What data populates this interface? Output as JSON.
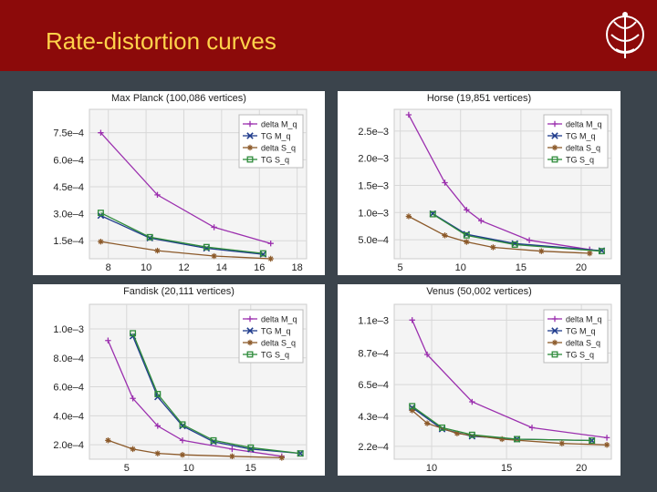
{
  "slide": {
    "title": "Rate-distortion curves"
  },
  "chart_data": [
    {
      "type": "line",
      "title": "Max Planck (100,086 vertices)",
      "xlim": [
        7,
        18.5
      ],
      "ylim": [
        5e-05,
        0.00088
      ],
      "xticks": [
        8,
        10,
        12,
        14,
        16,
        18
      ],
      "yticks": [
        0.00015,
        0.0003,
        0.00045,
        0.0006,
        0.00075
      ],
      "ytick_labels": [
        "1.5e–4",
        "3.0e–4",
        "4.5e–4",
        "6.0e–4",
        "7.5e–4"
      ],
      "legend": [
        "delta M_q",
        "TG M_q",
        "delta S_q",
        "TG S_q"
      ],
      "series": [
        {
          "name": "delta M_q",
          "x": [
            7.6,
            10.6,
            13.6,
            16.6
          ],
          "values": [
            0.00075,
            0.000405,
            0.000225,
            0.000135
          ]
        },
        {
          "name": "TG M_q",
          "x": [
            7.6,
            10.2,
            13.2,
            16.2
          ],
          "values": [
            0.00029,
            0.000165,
            0.000108,
            7.5e-05
          ]
        },
        {
          "name": "delta S_q",
          "x": [
            7.6,
            10.6,
            13.6,
            16.6
          ],
          "values": [
            0.000145,
            9.5e-05,
            6.5e-05,
            5e-05
          ]
        },
        {
          "name": "TG S_q",
          "x": [
            7.6,
            10.2,
            13.2,
            16.2
          ],
          "values": [
            0.000305,
            0.00017,
            0.000115,
            8e-05
          ]
        }
      ]
    },
    {
      "type": "line",
      "title": "Horse (19,851 vertices)",
      "xlim": [
        4.5,
        22.5
      ],
      "ylim": [
        0.00015,
        0.0029
      ],
      "xticks": [
        5,
        10,
        15,
        20
      ],
      "yticks": [
        0.0005,
        0.001,
        0.0015,
        0.002,
        0.0025
      ],
      "ytick_labels": [
        "5.0e–4",
        "1.0e–3",
        "1.5e–3",
        "2.0e–3",
        "2.5e–3"
      ],
      "legend": [
        "delta M_q",
        "TG M_q",
        "delta S_q",
        "TG S_q"
      ],
      "series": [
        {
          "name": "delta M_q",
          "x": [
            5.7,
            8.7,
            10.5,
            11.7,
            15.7,
            20.7
          ],
          "values": [
            0.0028,
            0.00155,
            0.00105,
            0.00085,
            0.00049,
            0.00032
          ]
        },
        {
          "name": "TG M_q",
          "x": [
            7.7,
            10.5,
            14.5,
            21.7
          ],
          "values": [
            0.00098,
            0.0006,
            0.00043,
            0.0003
          ]
        },
        {
          "name": "delta S_q",
          "x": [
            5.7,
            8.7,
            10.5,
            12.7,
            16.7,
            20.7
          ],
          "values": [
            0.00093,
            0.00058,
            0.00046,
            0.00036,
            0.00029,
            0.00025
          ]
        },
        {
          "name": "TG S_q",
          "x": [
            7.7,
            10.5,
            14.5,
            21.7
          ],
          "values": [
            0.00097,
            0.00058,
            0.00041,
            0.00029
          ]
        }
      ]
    },
    {
      "type": "line",
      "title": "Fandisk (20,111 vertices)",
      "xlim": [
        2,
        19.5
      ],
      "ylim": [
        0.0001,
        0.00117
      ],
      "xticks": [
        5,
        10,
        15
      ],
      "yticks": [
        0.0002,
        0.0004,
        0.0006,
        0.0008,
        0.001
      ],
      "ytick_labels": [
        "2.0e–4",
        "4.0e–4",
        "6.0e–4",
        "8.0e–4",
        "1.0e–3"
      ],
      "legend": [
        "delta M_q",
        "TG M_q",
        "delta S_q",
        "TG S_q"
      ],
      "series": [
        {
          "name": "delta M_q",
          "x": [
            3.5,
            5.5,
            7.5,
            9.5,
            13.5,
            17.5
          ],
          "values": [
            0.00092,
            0.00052,
            0.00033,
            0.00023,
            0.00017,
            0.00012
          ]
        },
        {
          "name": "TG M_q",
          "x": [
            5.5,
            7.5,
            9.5,
            12,
            15,
            19
          ],
          "values": [
            0.00095,
            0.00053,
            0.00033,
            0.00022,
            0.00017,
            0.00014
          ]
        },
        {
          "name": "delta S_q",
          "x": [
            3.5,
            5.5,
            7.5,
            9.5,
            13.5,
            17.5
          ],
          "values": [
            0.00023,
            0.00017,
            0.00014,
            0.00013,
            0.00012,
            0.00011
          ]
        },
        {
          "name": "TG S_q",
          "x": [
            5.5,
            7.5,
            9.5,
            12,
            15,
            19
          ],
          "values": [
            0.00097,
            0.00055,
            0.00034,
            0.00023,
            0.00018,
            0.00014
          ]
        }
      ]
    },
    {
      "type": "line",
      "title": "Venus (50,002 vertices)",
      "xlim": [
        7.5,
        22
      ],
      "ylim": [
        0.00013,
        0.00121
      ],
      "xticks": [
        10,
        15,
        20
      ],
      "yticks": [
        0.00022,
        0.00043,
        0.00065,
        0.00087,
        0.0011
      ],
      "ytick_labels": [
        "2.2e–4",
        "4.3e–4",
        "6.5e–4",
        "8.7e–4",
        "1.1e–3"
      ],
      "legend": [
        "delta M_q",
        "TG M_q",
        "delta S_q",
        "TG S_q"
      ],
      "series": [
        {
          "name": "delta M_q",
          "x": [
            8.7,
            9.7,
            12.7,
            16.7,
            21.7
          ],
          "values": [
            0.0011,
            0.00086,
            0.00053,
            0.00035,
            0.00028
          ]
        },
        {
          "name": "TG M_q",
          "x": [
            8.7,
            10.7,
            12.7,
            15.7,
            20.7
          ],
          "values": [
            0.00049,
            0.00034,
            0.00029,
            0.00027,
            0.00026
          ]
        },
        {
          "name": "delta S_q",
          "x": [
            8.7,
            9.7,
            11.7,
            14.7,
            18.7,
            21.7
          ],
          "values": [
            0.00047,
            0.00038,
            0.00031,
            0.00027,
            0.00024,
            0.00023
          ]
        },
        {
          "name": "TG S_q",
          "x": [
            8.7,
            10.7,
            12.7,
            15.7,
            20.7
          ],
          "values": [
            0.0005,
            0.00035,
            0.0003,
            0.00027,
            0.00026
          ]
        }
      ]
    }
  ],
  "series_styles": [
    {
      "color": "#9b2fae",
      "marker": "plus"
    },
    {
      "color": "#1f3b8c",
      "marker": "x"
    },
    {
      "color": "#8c5a2a",
      "marker": "star"
    },
    {
      "color": "#2e8b3a",
      "marker": "square"
    }
  ]
}
